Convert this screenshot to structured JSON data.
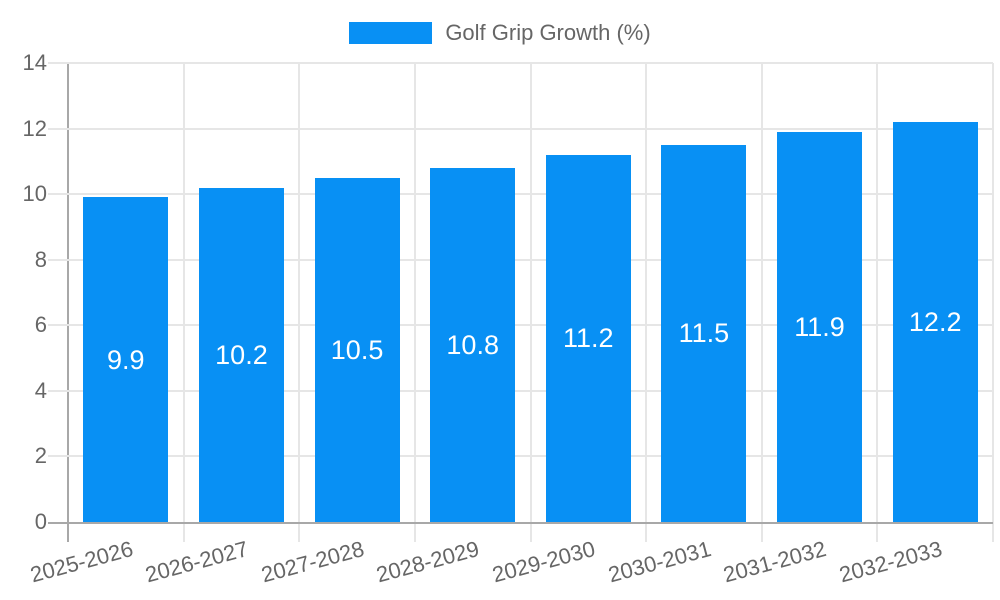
{
  "chart_data": {
    "type": "bar",
    "title": "Golf Grip Growth (%)",
    "legend": {
      "label": "Golf Grip Growth (%)",
      "position": "top"
    },
    "categories": [
      "2025-2026",
      "2026-2027",
      "2027-2028",
      "2028-2029",
      "2029-2030",
      "2030-2031",
      "2031-2032",
      "2032-2033"
    ],
    "series": [
      {
        "name": "Golf Grip Growth (%)",
        "values": [
          9.9,
          10.2,
          10.5,
          10.8,
          11.2,
          11.5,
          11.9,
          12.2
        ]
      }
    ],
    "bar_value_labels": [
      "9.9",
      "10.2",
      "10.5",
      "10.8",
      "11.2",
      "11.5",
      "11.9",
      "12.2"
    ],
    "xlabel": "",
    "ylabel": "",
    "ylim": [
      0,
      14
    ],
    "ytick_step": 2,
    "yticks": [
      0,
      2,
      4,
      6,
      8,
      10,
      12,
      14
    ],
    "grid": true,
    "colors": {
      "bar": "#0890f4",
      "grid_line": "#e6e6e6",
      "axis_line": "#a8a8a8",
      "tick_text": "#666666",
      "bar_label_text": "#ffffff",
      "background": "#ffffff"
    }
  }
}
